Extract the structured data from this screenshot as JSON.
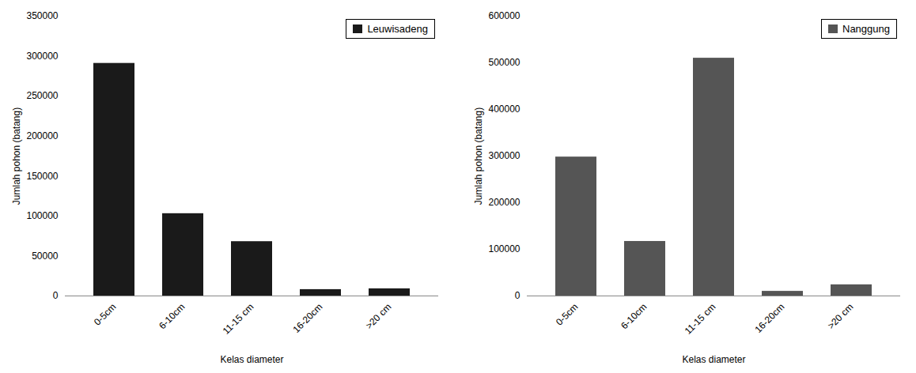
{
  "chart_data": [
    {
      "type": "bar",
      "xlabel": "Kelas diameter",
      "ylabel": "Jumlah pohon (batang)",
      "categories": [
        "0-5cm",
        "6-10cm",
        "11-15 cm",
        "16-20cm",
        ">20 cm"
      ],
      "series": [
        {
          "name": "Leuwisadeng",
          "color": "#1a1a1a",
          "values": [
            291000,
            103000,
            68000,
            8000,
            9000
          ]
        }
      ],
      "ylim": [
        0,
        350000
      ],
      "yticks": [
        0,
        50000,
        100000,
        150000,
        200000,
        250000,
        300000,
        350000
      ],
      "legend": "upper right"
    },
    {
      "type": "bar",
      "xlabel": "Kelas diameter",
      "ylabel": "Jumlah pohon (batang)",
      "categories": [
        "0-5cm",
        "6-10cm",
        "11-15 cm",
        "16-20cm",
        ">20 cm"
      ],
      "series": [
        {
          "name": "Nanggung",
          "color": "#555555",
          "values": [
            298000,
            117000,
            510000,
            10000,
            24000
          ]
        }
      ],
      "ylim": [
        0,
        600000
      ],
      "yticks": [
        0,
        100000,
        200000,
        300000,
        400000,
        500000,
        600000
      ],
      "legend": "upper right"
    }
  ]
}
